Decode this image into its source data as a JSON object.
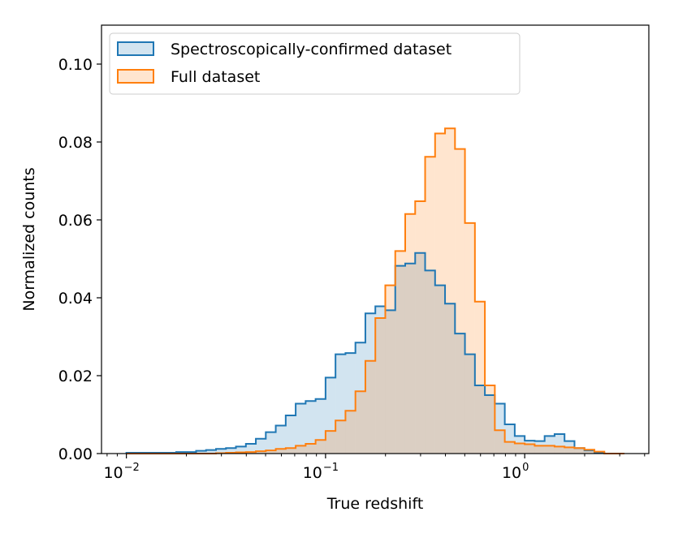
{
  "chart_data": {
    "type": "histogram",
    "xscale": "log",
    "title": "",
    "xlabel": "True redshift",
    "ylabel": "Normalized counts",
    "xlim": [
      0.0075,
      4.2
    ],
    "ylim": [
      0.0,
      0.11
    ],
    "x_ticks": [
      {
        "value": 0.01,
        "base": "10",
        "exp": "−2"
      },
      {
        "value": 0.1,
        "base": "10",
        "exp": "−1"
      },
      {
        "value": 1,
        "base": "10",
        "exp": "0"
      }
    ],
    "y_ticks": [
      {
        "value": 0.0,
        "label": "0.00"
      },
      {
        "value": 0.02,
        "label": "0.02"
      },
      {
        "value": 0.04,
        "label": "0.04"
      },
      {
        "value": 0.06,
        "label": "0.06"
      },
      {
        "value": 0.08,
        "label": "0.08"
      },
      {
        "value": 0.1,
        "label": "0.10"
      }
    ],
    "legend_position": "top-left",
    "bin_edges_log10": [
      -2.0,
      -1.95,
      -1.9,
      -1.85,
      -1.8,
      -1.75,
      -1.7,
      -1.65,
      -1.6,
      -1.55,
      -1.5,
      -1.45,
      -1.4,
      -1.35,
      -1.3,
      -1.25,
      -1.2,
      -1.15,
      -1.1,
      -1.05,
      -1.0,
      -0.95,
      -0.9,
      -0.85,
      -0.8,
      -0.75,
      -0.7,
      -0.65,
      -0.6,
      -0.55,
      -0.5,
      -0.45,
      -0.4,
      -0.35,
      -0.3,
      -0.25,
      -0.2,
      -0.15,
      -0.1,
      -0.05,
      0.0,
      0.05,
      0.1,
      0.15,
      0.2,
      0.25,
      0.3,
      0.35,
      0.4,
      0.45,
      0.5
    ],
    "series": [
      {
        "name": "Spectroscopically-confirmed dataset",
        "color": "#1f77b4",
        "fill": "#1f77b4",
        "values": [
          0.0002,
          0.0002,
          0.0002,
          0.0002,
          0.0002,
          0.0004,
          0.0004,
          0.0007,
          0.0009,
          0.0012,
          0.0014,
          0.0018,
          0.0025,
          0.0038,
          0.0055,
          0.0072,
          0.0098,
          0.0128,
          0.0135,
          0.014,
          0.0195,
          0.0255,
          0.0258,
          0.0285,
          0.036,
          0.0378,
          0.0368,
          0.0482,
          0.0488,
          0.0515,
          0.047,
          0.0432,
          0.0385,
          0.0308,
          0.0255,
          0.0175,
          0.015,
          0.0128,
          0.0075,
          0.0045,
          0.0033,
          0.0032,
          0.0045,
          0.005,
          0.0032,
          0.0014,
          0.0008,
          0.0002,
          0.0,
          0.0
        ]
      },
      {
        "name": "Full dataset",
        "color": "#ff7f0e",
        "fill": "#ff7f0e",
        "values": [
          0.0,
          0.0,
          0.0,
          0.0,
          0.0,
          0.0,
          0.0,
          0.0,
          0.0,
          0.0001,
          0.0002,
          0.0003,
          0.0004,
          0.0006,
          0.0008,
          0.0012,
          0.0014,
          0.002,
          0.0025,
          0.0035,
          0.0058,
          0.0085,
          0.011,
          0.016,
          0.0238,
          0.0348,
          0.0432,
          0.052,
          0.0615,
          0.0648,
          0.0762,
          0.0822,
          0.0835,
          0.0782,
          0.0592,
          0.039,
          0.0175,
          0.006,
          0.003,
          0.0026,
          0.0024,
          0.002,
          0.002,
          0.0018,
          0.0016,
          0.0014,
          0.001,
          0.0005,
          0.0,
          0.0
        ]
      }
    ]
  }
}
